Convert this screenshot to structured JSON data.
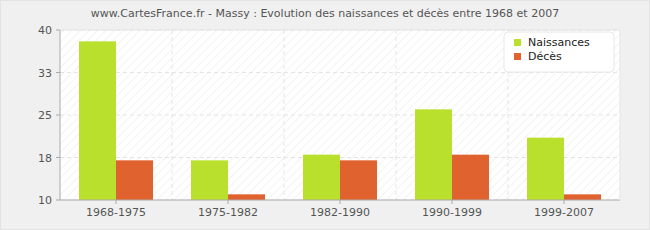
{
  "chart_data": {
    "type": "bar",
    "title": "www.CartesFrance.fr - Massy : Evolution des naissances et décès entre 1968 et 2007",
    "categories": [
      "1968-1975",
      "1975-1982",
      "1982-1990",
      "1990-1999",
      "1999-2007"
    ],
    "series": [
      {
        "name": "Naissances",
        "color": "#b9e02d",
        "values": [
          38,
          17,
          18,
          26,
          21
        ]
      },
      {
        "name": "Décès",
        "color": "#e0632f",
        "values": [
          17,
          11,
          17,
          18,
          11
        ]
      }
    ],
    "ylim": [
      10,
      40
    ],
    "yticks": [
      10,
      {
        "value": 17.5,
        "label": "18"
      },
      25,
      {
        "value": 32.5,
        "label": "33"
      },
      40
    ],
    "grid": true,
    "legend": "top-right"
  }
}
